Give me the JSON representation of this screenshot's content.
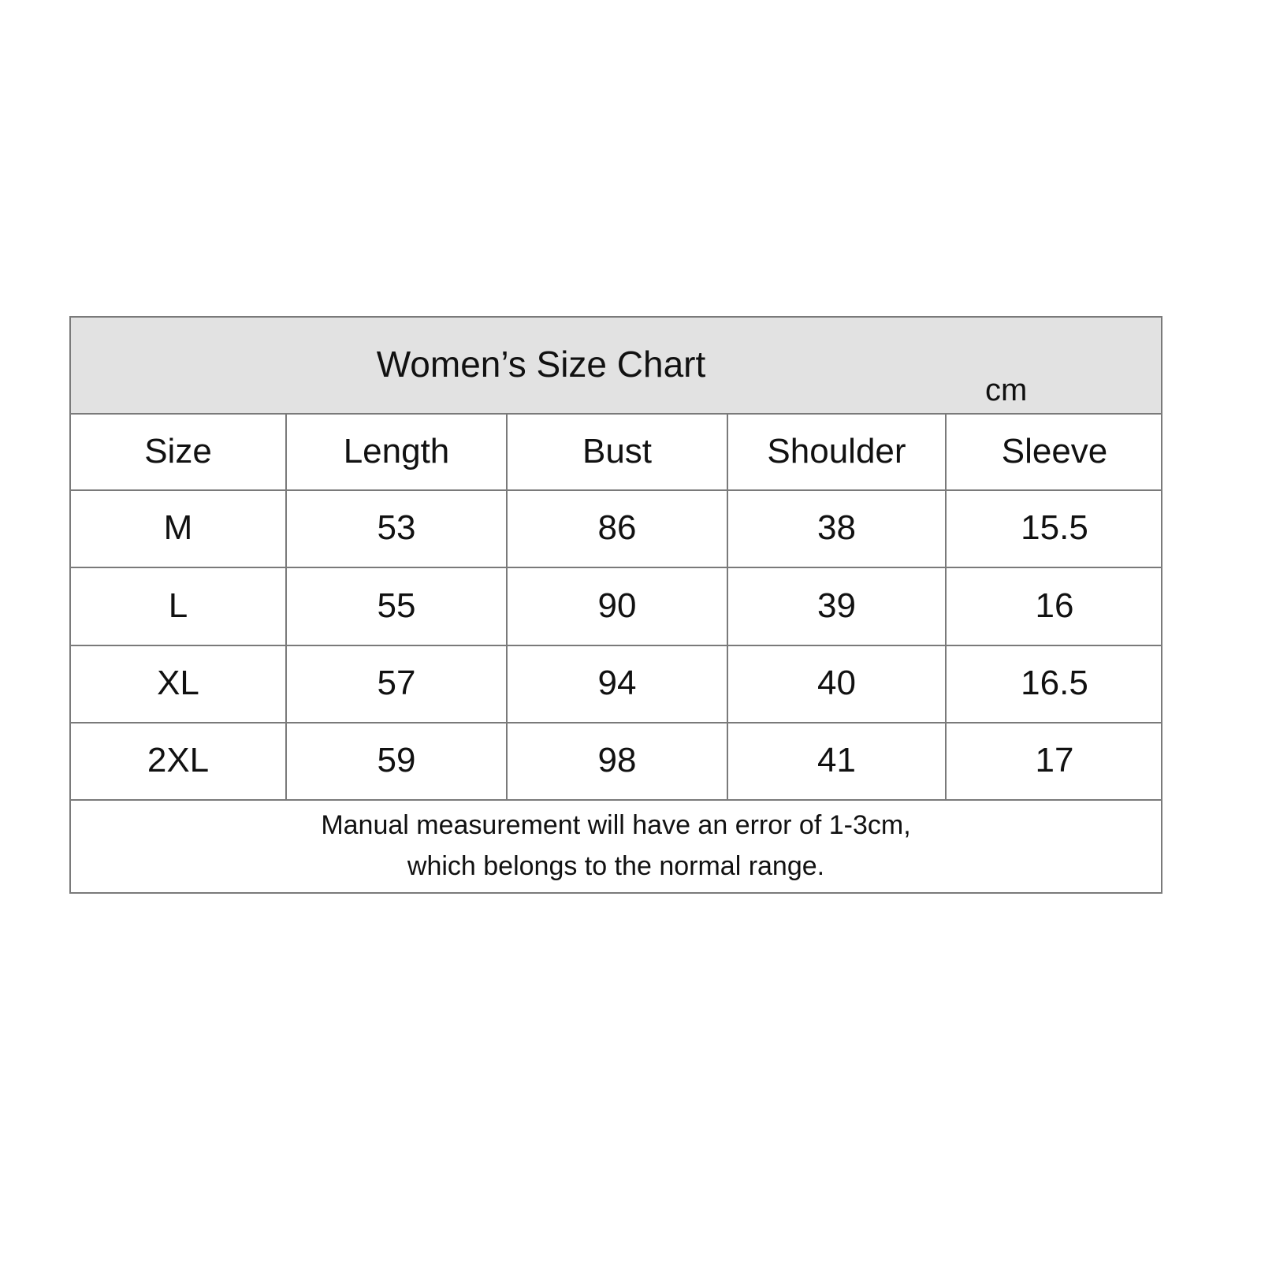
{
  "chart_data": {
    "type": "table",
    "title": "Women’s Size Chart",
    "unit": "cm",
    "columns": [
      "Size",
      "Length",
      "Bust",
      "Shoulder",
      "Sleeve"
    ],
    "rows": [
      [
        "M",
        "53",
        "86",
        "38",
        "15.5"
      ],
      [
        "L",
        "55",
        "90",
        "39",
        "16"
      ],
      [
        "XL",
        "57",
        "94",
        "40",
        "16.5"
      ],
      [
        "2XL",
        "59",
        "98",
        "41",
        "17"
      ]
    ],
    "note": [
      "Manual measurement will have an error of 1-3cm,",
      "which belongs to the normal range."
    ],
    "colors": {
      "header_bg": "#e2e2e2",
      "border": "#7a7a7a"
    }
  }
}
